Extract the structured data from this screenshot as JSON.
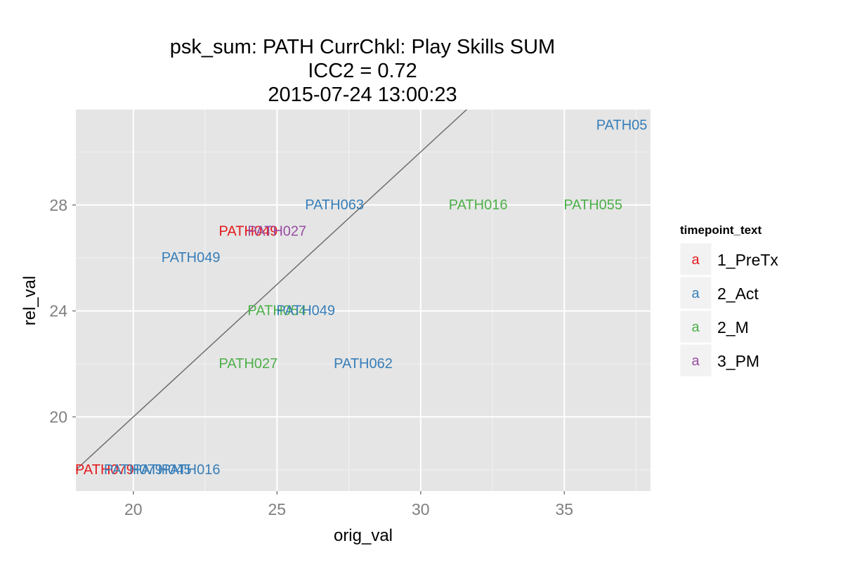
{
  "chart_data": {
    "type": "scatter",
    "title_lines": [
      "psk_sum: PATH CurrChkl: Play Skills SUM",
      "ICC2 = 0.72",
      "2015-07-24 13:00:23"
    ],
    "xlabel": "orig_val",
    "ylabel": "rel_val",
    "xlim": [
      18,
      38
    ],
    "ylim": [
      17.2,
      31.6
    ],
    "x_ticks": [
      20,
      25,
      30,
      35
    ],
    "y_ticks": [
      20,
      24,
      28
    ],
    "grid": true,
    "reference_line": {
      "slope": 1,
      "intercept": 0,
      "color": "#6e6e6e"
    },
    "legend": {
      "title": "timepoint_text",
      "placement": "right",
      "key_glyph": "a",
      "entries": [
        {
          "name": "1_PreTx",
          "color": "#e41a1c"
        },
        {
          "name": "2_Act",
          "color": "#377eb8"
        },
        {
          "name": "2_M",
          "color": "#4daf4a"
        },
        {
          "name": "3_PM",
          "color": "#984ea3"
        }
      ]
    },
    "points": [
      {
        "label": "PATH05",
        "x": 37,
        "y": 31,
        "group": "2_Act"
      },
      {
        "label": "PATH063",
        "x": 27,
        "y": 28,
        "group": "2_Act"
      },
      {
        "label": "PATH016",
        "x": 32,
        "y": 28,
        "group": "2_M"
      },
      {
        "label": "PATH055",
        "x": 36,
        "y": 28,
        "group": "2_M"
      },
      {
        "label": "PATH049",
        "x": 24,
        "y": 27,
        "group": "1_PreTx"
      },
      {
        "label": "PATH027",
        "x": 25,
        "y": 27,
        "group": "3_PM"
      },
      {
        "label": "PATH049",
        "x": 22,
        "y": 26,
        "group": "2_Act"
      },
      {
        "label": "PATH054",
        "x": 25,
        "y": 24,
        "group": "2_M"
      },
      {
        "label": "PATH049",
        "x": 26,
        "y": 24,
        "group": "2_Act"
      },
      {
        "label": "PATH027",
        "x": 24,
        "y": 22,
        "group": "2_M"
      },
      {
        "label": "PATH062",
        "x": 28,
        "y": 22,
        "group": "2_Act"
      },
      {
        "label": "PATH079",
        "x": 19,
        "y": 18,
        "group": "1_PreTx"
      },
      {
        "label": "PATH079",
        "x": 20,
        "y": 18,
        "group": "2_Act"
      },
      {
        "label": "PATH045",
        "x": 21,
        "y": 18,
        "group": "2_Act"
      },
      {
        "label": "PATH016",
        "x": 22,
        "y": 18,
        "group": "2_Act"
      }
    ]
  }
}
